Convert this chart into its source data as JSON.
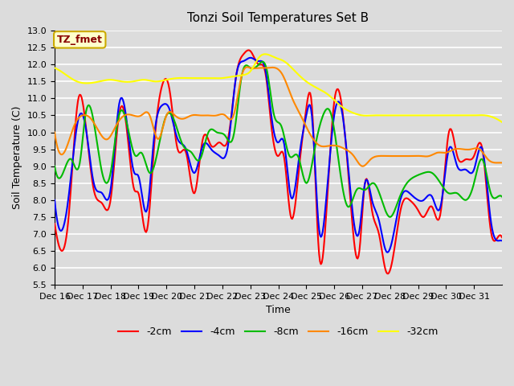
{
  "title": "Tonzi Soil Temperatures Set B",
  "xlabel": "Time",
  "ylabel": "Soil Temperature (C)",
  "ylim": [
    5.5,
    13.0
  ],
  "yticks": [
    5.5,
    6.0,
    6.5,
    7.0,
    7.5,
    8.0,
    8.5,
    9.0,
    9.5,
    10.0,
    10.5,
    11.0,
    11.5,
    12.0,
    12.5,
    13.0
  ],
  "xtick_labels": [
    "Dec 16",
    "Dec 17",
    "Dec 18",
    "Dec 19",
    "Dec 20",
    "Dec 21",
    "Dec 22",
    "Dec 23",
    "Dec 24",
    "Dec 25",
    "Dec 26",
    "Dec 27",
    "Dec 28",
    "Dec 29",
    "Dec 30",
    "Dec 31"
  ],
  "legend_labels": [
    "-2cm",
    "-4cm",
    "-8cm",
    "-16cm",
    "-32cm"
  ],
  "legend_colors": [
    "#ff0000",
    "#0000ff",
    "#00bb00",
    "#ff8800",
    "#ffff00"
  ],
  "line_width": 1.5,
  "bg_color": "#dcdcdc",
  "annotation_label": "TZ_fmet",
  "annotation_color": "#880000",
  "annotation_bg": "#ffffcc",
  "annotation_border": "#ccaa00"
}
